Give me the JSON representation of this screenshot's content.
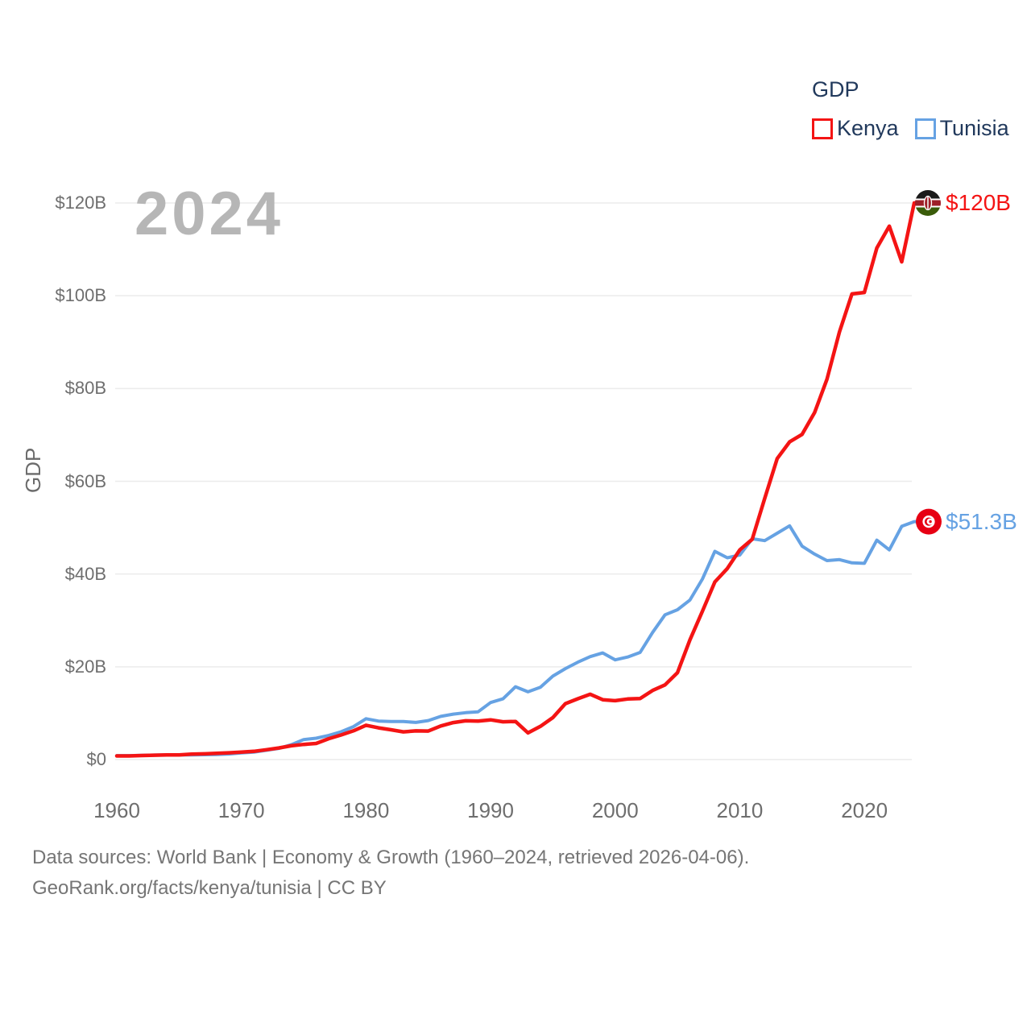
{
  "watermark": "2024",
  "legend": {
    "title": "GDP",
    "items": [
      {
        "label": "Kenya",
        "color": "#f41414"
      },
      {
        "label": "Tunisia",
        "color": "#66a2e3"
      }
    ]
  },
  "chart_data": {
    "type": "line",
    "title": "GDP",
    "ylabel": "GDP",
    "xlabel": "",
    "grid": true,
    "legend_position": "top-right",
    "grid_color": "#ebebeb",
    "axis_text_color": "#6e6e6e",
    "ylim": [
      0,
      120
    ],
    "xlim": [
      1960,
      2024
    ],
    "yticks": [
      {
        "label": "$0",
        "value": 0
      },
      {
        "label": "$20B",
        "value": 20
      },
      {
        "label": "$40B",
        "value": 40
      },
      {
        "label": "$60B",
        "value": 60
      },
      {
        "label": "$80B",
        "value": 80
      },
      {
        "label": "$100B",
        "value": 100
      },
      {
        "label": "$120B",
        "value": 120
      }
    ],
    "xticks": [
      1960,
      1970,
      1980,
      1990,
      2000,
      2010,
      2020
    ],
    "x": [
      1960,
      1961,
      1962,
      1963,
      1964,
      1965,
      1966,
      1967,
      1968,
      1969,
      1970,
      1971,
      1972,
      1973,
      1974,
      1975,
      1976,
      1977,
      1978,
      1979,
      1980,
      1981,
      1982,
      1983,
      1984,
      1985,
      1986,
      1987,
      1988,
      1989,
      1990,
      1991,
      1992,
      1993,
      1994,
      1995,
      1996,
      1997,
      1998,
      1999,
      2000,
      2001,
      2002,
      2003,
      2004,
      2005,
      2006,
      2007,
      2008,
      2009,
      2010,
      2011,
      2012,
      2013,
      2014,
      2015,
      2016,
      2017,
      2018,
      2019,
      2020,
      2021,
      2022,
      2023,
      2024
    ],
    "series": [
      {
        "name": "Kenya",
        "color": "#f41414",
        "line_width": 4.5,
        "end_label": "$120B",
        "flag": "kenya-flag-icon",
        "values": [
          0.79,
          0.79,
          0.87,
          0.93,
          1.0,
          1.0,
          1.16,
          1.23,
          1.35,
          1.46,
          1.6,
          1.78,
          2.11,
          2.5,
          2.97,
          3.26,
          3.47,
          4.5,
          5.3,
          6.2,
          7.4,
          6.85,
          6.43,
          5.98,
          6.19,
          6.14,
          7.24,
          7.97,
          8.36,
          8.28,
          8.57,
          8.15,
          8.21,
          5.75,
          7.15,
          9.05,
          12.05,
          13.12,
          14.09,
          12.9,
          12.7,
          13.06,
          13.15,
          14.9,
          16.1,
          18.74,
          25.83,
          31.96,
          38.3,
          41.2,
          45.2,
          47.5,
          56.3,
          64.9,
          68.5,
          70.1,
          74.8,
          82.0,
          92.2,
          100.4,
          100.7,
          110.3,
          115.0,
          107.3,
          120.0
        ]
      },
      {
        "name": "Tunisia",
        "color": "#66a2e3",
        "line_width": 4,
        "end_label": "$51.3B",
        "flag": "tunisia-flag-icon",
        "values": [
          0.85,
          0.85,
          0.9,
          0.98,
          1.0,
          1.0,
          1.0,
          1.05,
          1.1,
          1.2,
          1.44,
          1.6,
          2.0,
          2.4,
          3.2,
          4.3,
          4.6,
          5.2,
          6.0,
          7.1,
          8.8,
          8.3,
          8.2,
          8.2,
          8.0,
          8.4,
          9.3,
          9.8,
          10.1,
          10.3,
          12.3,
          13.1,
          15.7,
          14.6,
          15.6,
          18.0,
          19.6,
          21.0,
          22.2,
          23.0,
          21.5,
          22.1,
          23.1,
          27.4,
          31.2,
          32.3,
          34.4,
          38.9,
          44.9,
          43.5,
          44.1,
          47.6,
          47.2,
          48.8,
          50.4,
          46.0,
          44.3,
          42.9,
          43.1,
          42.4,
          42.3,
          47.3,
          45.2,
          50.3,
          51.3
        ]
      }
    ]
  },
  "footer": {
    "line1": "Data sources: World Bank | Economy & Growth (1960–2024, retrieved 2026-04-06).",
    "line2": "GeoRank.org/facts/kenya/tunisia | CC BY"
  }
}
